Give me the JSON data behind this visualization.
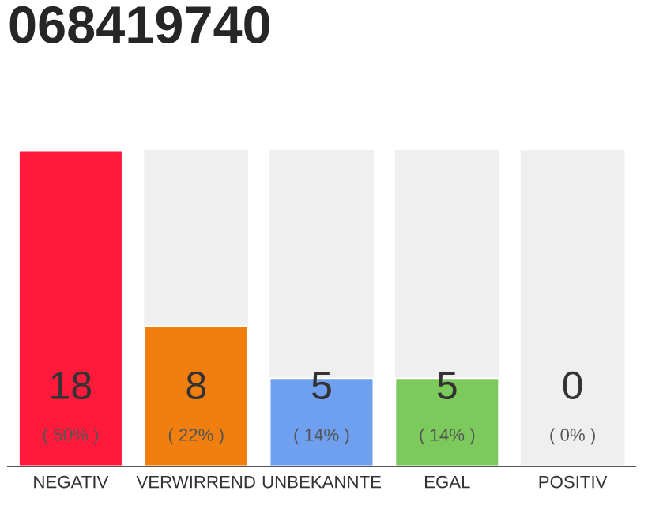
{
  "chart_data": {
    "type": "bar",
    "title": "068419740",
    "categories": [
      "NEGATIV",
      "VERWIRREND",
      "UNBEKANNTE",
      "EGAL",
      "POSITIV"
    ],
    "values": [
      18,
      8,
      5,
      5,
      0
    ],
    "colors": [
      "#ff1a3c",
      "#f07f0f",
      "#6fa0ef",
      "#7cc95c",
      "#efefef"
    ],
    "ylim": [
      0,
      18
    ],
    "relative": false,
    "data_labels": true,
    "grid": false,
    "legend": false,
    "annotations": [
      "( 50% )",
      "( 22% )",
      "( 14% )",
      "( 14% )",
      "( 0% )"
    ]
  }
}
